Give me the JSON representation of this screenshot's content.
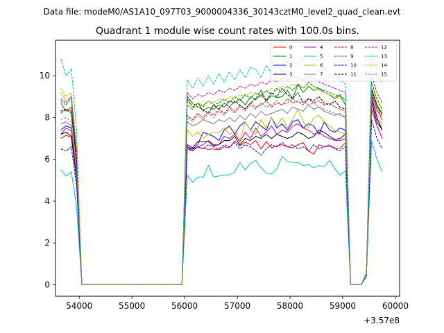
{
  "suptitle": "Data file: modeM0/AS1A10_097T03_9000004336_30143cztM0_level2_quad_clean.evt",
  "chart_data": {
    "type": "line",
    "title": "Quadrant 1 module wise count rates with 100.0s bins.",
    "xlabel": "",
    "ylabel": "",
    "x_offset_label": "+3.57e8",
    "xlim": [
      53550,
      60080
    ],
    "ylim": [
      -0.55,
      11.7
    ],
    "xticks": [
      54000,
      55000,
      56000,
      57000,
      58000,
      59000,
      60000
    ],
    "yticks": [
      0,
      2,
      4,
      6,
      8,
      10
    ],
    "legend_position": "top-right",
    "x": [
      53650,
      53750,
      53850,
      53950,
      54050,
      54150,
      54250,
      54350,
      54450,
      54550,
      54650,
      54750,
      54850,
      54950,
      55050,
      55150,
      55250,
      55350,
      55450,
      55550,
      55650,
      55750,
      55850,
      55950,
      56050,
      56150,
      56250,
      56350,
      56450,
      56550,
      56650,
      56750,
      56850,
      56950,
      57050,
      57150,
      57250,
      57350,
      57450,
      57550,
      57650,
      57750,
      57850,
      57950,
      58050,
      58150,
      58250,
      58350,
      58450,
      58550,
      58650,
      58750,
      58850,
      58950,
      59050,
      59150,
      59250,
      59350,
      59450,
      59550,
      59650,
      59750
    ],
    "series": [
      {
        "name": "0",
        "color": "#ff0000",
        "dash": "solid",
        "values": [
          7.0,
          7.15,
          7.05,
          5.0,
          0,
          0,
          0,
          0,
          0,
          0,
          0,
          0,
          0,
          0,
          0,
          0,
          0,
          0,
          0,
          0,
          0,
          0,
          0,
          0,
          6.55,
          6.48,
          6.58,
          6.52,
          6.48,
          6.5,
          6.45,
          6.6,
          6.55,
          6.88,
          6.65,
          6.82,
          6.7,
          6.9,
          6.5,
          6.85,
          6.55,
          6.65,
          6.7,
          6.6,
          6.55,
          6.7,
          6.8,
          6.4,
          6.25,
          6.7,
          6.6,
          6.62,
          6.55,
          6.52,
          6.8,
          0,
          0,
          0,
          0.4,
          8.4,
          7.6,
          7.0
        ]
      },
      {
        "name": "1",
        "color": "#008000",
        "dash": "solid",
        "values": [
          8.7,
          8.3,
          8.5,
          6.2,
          0,
          0,
          0,
          0,
          0,
          0,
          0,
          0,
          0,
          0,
          0,
          0,
          0,
          0,
          0,
          0,
          0,
          0,
          0,
          0,
          8.9,
          8.5,
          8.7,
          8.3,
          8.5,
          8.4,
          8.6,
          8.5,
          8.8,
          8.7,
          8.9,
          8.6,
          9.0,
          8.85,
          9.1,
          8.8,
          9.05,
          8.95,
          9.0,
          9.3,
          8.9,
          9.6,
          9.2,
          9.5,
          9.3,
          9.4,
          9.2,
          9.1,
          8.9,
          9.1,
          8.6,
          0,
          0,
          0,
          0.5,
          9.4,
          8.6,
          8.2
        ]
      },
      {
        "name": "2",
        "color": "#0000ff",
        "dash": "solid",
        "values": [
          7.4,
          7.6,
          7.5,
          5.4,
          0,
          0,
          0,
          0,
          0,
          0,
          0,
          0,
          0,
          0,
          0,
          0,
          0,
          0,
          0,
          0,
          0,
          0,
          0,
          0,
          6.6,
          6.5,
          6.7,
          7.3,
          7.2,
          7.1,
          6.9,
          7.4,
          7.6,
          7.2,
          7.6,
          7.8,
          7.4,
          7.8,
          7.6,
          7.4,
          8.0,
          7.5,
          7.7,
          7.4,
          7.8,
          7.9,
          7.5,
          7.7,
          7.6,
          7.2,
          7.8,
          7.4,
          7.3,
          7.5,
          7.4,
          0,
          0,
          0,
          0.5,
          8.8,
          7.8,
          7.4
        ]
      },
      {
        "name": "3",
        "color": "#000000",
        "dash": "solid",
        "values": [
          7.2,
          7.3,
          7.1,
          5.1,
          0,
          0,
          0,
          0,
          0,
          0,
          0,
          0,
          0,
          0,
          0,
          0,
          0,
          0,
          0,
          0,
          0,
          0,
          0,
          0,
          6.7,
          6.55,
          6.85,
          6.85,
          6.85,
          6.65,
          6.7,
          6.9,
          6.9,
          7.1,
          6.7,
          7.0,
          6.9,
          7.1,
          7.0,
          7.2,
          7.0,
          7.2,
          7.1,
          7.0,
          7.1,
          7.3,
          7.2,
          7.0,
          7.1,
          7.4,
          7.3,
          7.1,
          6.95,
          7.0,
          7.2,
          0,
          0,
          0,
          0.5,
          9.0,
          8.0,
          7.4
        ]
      },
      {
        "name": "4",
        "color": "#bf00bf",
        "dash": "solid",
        "values": [
          7.2,
          7.5,
          7.35,
          5.3,
          0,
          0,
          0,
          0,
          0,
          0,
          0,
          0,
          0,
          0,
          0,
          0,
          0,
          0,
          0,
          0,
          0,
          0,
          0,
          0,
          6.6,
          6.4,
          6.6,
          6.7,
          6.9,
          6.7,
          6.7,
          7.1,
          7.0,
          7.2,
          6.85,
          7.3,
          7.0,
          7.5,
          7.1,
          7.3,
          7.6,
          7.2,
          7.4,
          7.3,
          7.6,
          7.7,
          7.5,
          7.4,
          7.2,
          7.3,
          7.1,
          7.0,
          6.9,
          6.9,
          7.0,
          0,
          0,
          0,
          0.5,
          8.7,
          7.6,
          7.0
        ]
      },
      {
        "name": "5",
        "color": "#00bfbf",
        "dash": "solid",
        "values": [
          5.5,
          5.2,
          5.4,
          3.7,
          0,
          0,
          0,
          0,
          0,
          0,
          0,
          0,
          0,
          0,
          0,
          0,
          0,
          0,
          0,
          0,
          0,
          0,
          0,
          0,
          5.25,
          4.9,
          5.15,
          5.15,
          5.7,
          5.15,
          5.2,
          5.25,
          5.25,
          5.4,
          5.85,
          5.5,
          5.8,
          5.95,
          5.6,
          5.35,
          5.3,
          5.55,
          6.15,
          5.9,
          5.85,
          5.85,
          5.7,
          5.75,
          5.6,
          5.7,
          5.65,
          5.95,
          5.55,
          5.25,
          5.45,
          0,
          0,
          0,
          0.4,
          6.9,
          6.0,
          5.4
        ]
      },
      {
        "name": "6",
        "color": "#bfbf00",
        "dash": "solid",
        "values": [
          9.2,
          8.8,
          9.0,
          6.4,
          0,
          0,
          0,
          0,
          0,
          0,
          0,
          0,
          0,
          0,
          0,
          0,
          0,
          0,
          0,
          0,
          0,
          0,
          0,
          0,
          7.4,
          7.1,
          7.3,
          7.0,
          7.2,
          7.3,
          7.3,
          7.5,
          7.2,
          7.4,
          6.9,
          7.8,
          7.4,
          7.2,
          7.9,
          7.5,
          8.0,
          7.6,
          8.0,
          7.5,
          7.9,
          8.4,
          7.8,
          7.5,
          8.0,
          8.1,
          7.8,
          7.6,
          7.4,
          7.3,
          7.2,
          0,
          0,
          0,
          0.5,
          9.2,
          8.2,
          7.6
        ]
      },
      {
        "name": "7",
        "color": "#7f7f7f",
        "dash": "solid",
        "values": [
          7.7,
          7.8,
          7.6,
          5.5,
          0,
          0,
          0,
          0,
          0,
          0,
          0,
          0,
          0,
          0,
          0,
          0,
          0,
          0,
          0,
          0,
          0,
          0,
          0,
          0,
          7.8,
          7.6,
          7.7,
          7.9,
          7.8,
          7.7,
          7.9,
          7.8,
          8.0,
          7.8,
          8.1,
          7.9,
          8.2,
          8.0,
          8.3,
          8.1,
          8.2,
          8.3,
          8.4,
          8.2,
          8.5,
          8.4,
          8.3,
          8.6,
          8.4,
          8.5,
          8.3,
          8.2,
          8.1,
          8.2,
          8.0,
          0,
          0,
          0,
          0.5,
          9.3,
          8.4,
          7.9
        ]
      },
      {
        "name": "8",
        "color": "#ff0000",
        "dash": "dashed",
        "values": [
          8.2,
          8.4,
          8.3,
          5.9,
          0,
          0,
          0,
          0,
          0,
          0,
          0,
          0,
          0,
          0,
          0,
          0,
          0,
          0,
          0,
          0,
          0,
          0,
          0,
          0,
          8.1,
          7.9,
          8.2,
          8.0,
          8.3,
          8.1,
          8.4,
          8.2,
          8.5,
          8.3,
          8.6,
          8.4,
          8.7,
          8.5,
          8.6,
          8.8,
          8.5,
          8.7,
          8.6,
          8.9,
          8.7,
          8.8,
          8.6,
          8.9,
          8.7,
          8.8,
          8.6,
          8.7,
          8.5,
          8.4,
          8.3,
          0,
          0,
          0,
          0.5,
          9.1,
          8.4,
          7.9
        ]
      },
      {
        "name": "9",
        "color": "#008000",
        "dash": "dashed",
        "values": [
          8.8,
          8.6,
          8.9,
          6.3,
          0,
          0,
          0,
          0,
          0,
          0,
          0,
          0,
          0,
          0,
          0,
          0,
          0,
          0,
          0,
          0,
          0,
          0,
          0,
          0,
          8.6,
          8.4,
          8.7,
          8.5,
          8.8,
          8.6,
          8.7,
          8.9,
          8.7,
          9.0,
          8.8,
          9.1,
          8.9,
          9.2,
          9.0,
          9.3,
          9.1,
          9.4,
          9.2,
          9.5,
          9.3,
          9.6,
          9.4,
          9.7,
          9.5,
          9.4,
          9.3,
          9.2,
          9.1,
          9.0,
          8.9,
          0,
          0,
          0,
          0.5,
          9.7,
          8.9,
          8.4
        ]
      },
      {
        "name": "10",
        "color": "#0000ff",
        "dash": "dashed",
        "values": [
          6.5,
          6.4,
          6.6,
          4.7,
          0,
          0,
          0,
          0,
          0,
          0,
          0,
          0,
          0,
          0,
          0,
          0,
          0,
          0,
          0,
          0,
          0,
          0,
          0,
          0,
          6.5,
          6.4,
          6.6,
          6.5,
          6.7,
          6.6,
          6.5,
          6.7,
          6.6,
          6.8,
          6.5,
          6.7,
          6.6,
          6.4,
          6.2,
          6.5,
          6.7,
          6.6,
          6.8,
          6.6,
          6.7,
          6.5,
          6.6,
          6.4,
          6.7,
          6.5,
          6.6,
          6.7,
          6.5,
          6.4,
          6.6,
          0,
          0,
          0,
          0.4,
          7.9,
          7.0,
          6.5
        ]
      },
      {
        "name": "11",
        "color": "#000000",
        "dash": "dashed",
        "values": [
          8.3,
          8.4,
          8.2,
          5.9,
          0,
          0,
          0,
          0,
          0,
          0,
          0,
          0,
          0,
          0,
          0,
          0,
          0,
          0,
          0,
          0,
          0,
          0,
          0,
          0,
          9.0,
          8.7,
          8.5,
          8.4,
          8.2,
          8.6,
          8.4,
          8.7,
          8.5,
          8.8,
          8.6,
          8.4,
          8.7,
          8.9,
          9.3,
          8.8,
          9.2,
          9.0,
          9.4,
          9.1,
          8.9,
          9.2,
          8.7,
          8.9,
          8.8,
          9.0,
          8.7,
          8.6,
          8.8,
          8.5,
          8.4,
          0,
          0,
          0,
          0.5,
          9.3,
          8.6,
          8.1
        ]
      },
      {
        "name": "12",
        "color": "#bf00bf",
        "dash": "dashed",
        "values": [
          8.9,
          8.7,
          9.0,
          6.4,
          0,
          0,
          0,
          0,
          0,
          0,
          0,
          0,
          0,
          0,
          0,
          0,
          0,
          0,
          0,
          0,
          0,
          0,
          0,
          0,
          9.2,
          8.9,
          9.1,
          9.0,
          9.2,
          9.1,
          9.3,
          9.2,
          9.4,
          9.3,
          9.5,
          9.4,
          9.6,
          9.5,
          9.7,
          9.6,
          9.8,
          9.7,
          9.9,
          9.8,
          10.0,
          9.9,
          9.8,
          10.0,
          9.9,
          9.7,
          9.6,
          9.5,
          9.4,
          9.3,
          9.2,
          0,
          0,
          0,
          0.5,
          10.0,
          9.2,
          8.7
        ]
      },
      {
        "name": "13",
        "color": "#00bfbf",
        "dash": "dashed",
        "values": [
          10.8,
          10.0,
          10.35,
          7.4,
          0,
          0,
          0,
          0,
          0,
          0,
          0,
          0,
          0,
          0,
          0,
          0,
          0,
          0,
          0,
          0,
          0,
          0,
          0,
          0,
          9.8,
          9.4,
          9.9,
          9.5,
          10.0,
          9.6,
          10.1,
          9.7,
          10.2,
          9.8,
          10.3,
          9.9,
          10.4,
          10.3,
          9.9,
          10.5,
          10.1,
          10.6,
          10.2,
          10.7,
          10.3,
          10.6,
          10.8,
          10.4,
          10.6,
          10.2,
          10.4,
          10.0,
          10.2,
          9.8,
          9.6,
          0,
          0,
          0,
          0.6,
          11.1,
          10.2,
          9.6
        ]
      },
      {
        "name": "14",
        "color": "#bfbf00",
        "dash": "dashed",
        "values": [
          9.4,
          9.0,
          9.2,
          6.6,
          0,
          0,
          0,
          0,
          0,
          0,
          0,
          0,
          0,
          0,
          0,
          0,
          0,
          0,
          0,
          0,
          0,
          0,
          0,
          0,
          8.8,
          8.5,
          8.7,
          8.6,
          8.8,
          8.7,
          8.9,
          8.8,
          9.0,
          8.9,
          9.1,
          9.0,
          9.2,
          9.1,
          9.3,
          9.2,
          9.4,
          9.3,
          9.5,
          9.4,
          9.6,
          9.5,
          9.4,
          9.6,
          9.5,
          9.3,
          9.2,
          9.1,
          9.0,
          8.9,
          8.8,
          0,
          0,
          0,
          0.5,
          9.6,
          8.8,
          8.3
        ]
      },
      {
        "name": "15",
        "color": "#7f7f7f",
        "dash": "dashed",
        "values": [
          7.9,
          8.0,
          7.8,
          5.6,
          0,
          0,
          0,
          0,
          0,
          0,
          0,
          0,
          0,
          0,
          0,
          0,
          0,
          0,
          0,
          0,
          0,
          0,
          0,
          0,
          8.0,
          7.8,
          8.1,
          7.9,
          8.2,
          8.0,
          8.3,
          8.1,
          8.4,
          8.2,
          8.5,
          8.3,
          8.6,
          8.4,
          8.7,
          8.5,
          8.6,
          8.8,
          8.6,
          8.7,
          8.9,
          8.7,
          8.8,
          8.6,
          8.7,
          8.5,
          8.4,
          8.3,
          8.2,
          8.1,
          8.0,
          0,
          0,
          0,
          0.5,
          9.2,
          8.5,
          8.0
        ]
      }
    ]
  }
}
